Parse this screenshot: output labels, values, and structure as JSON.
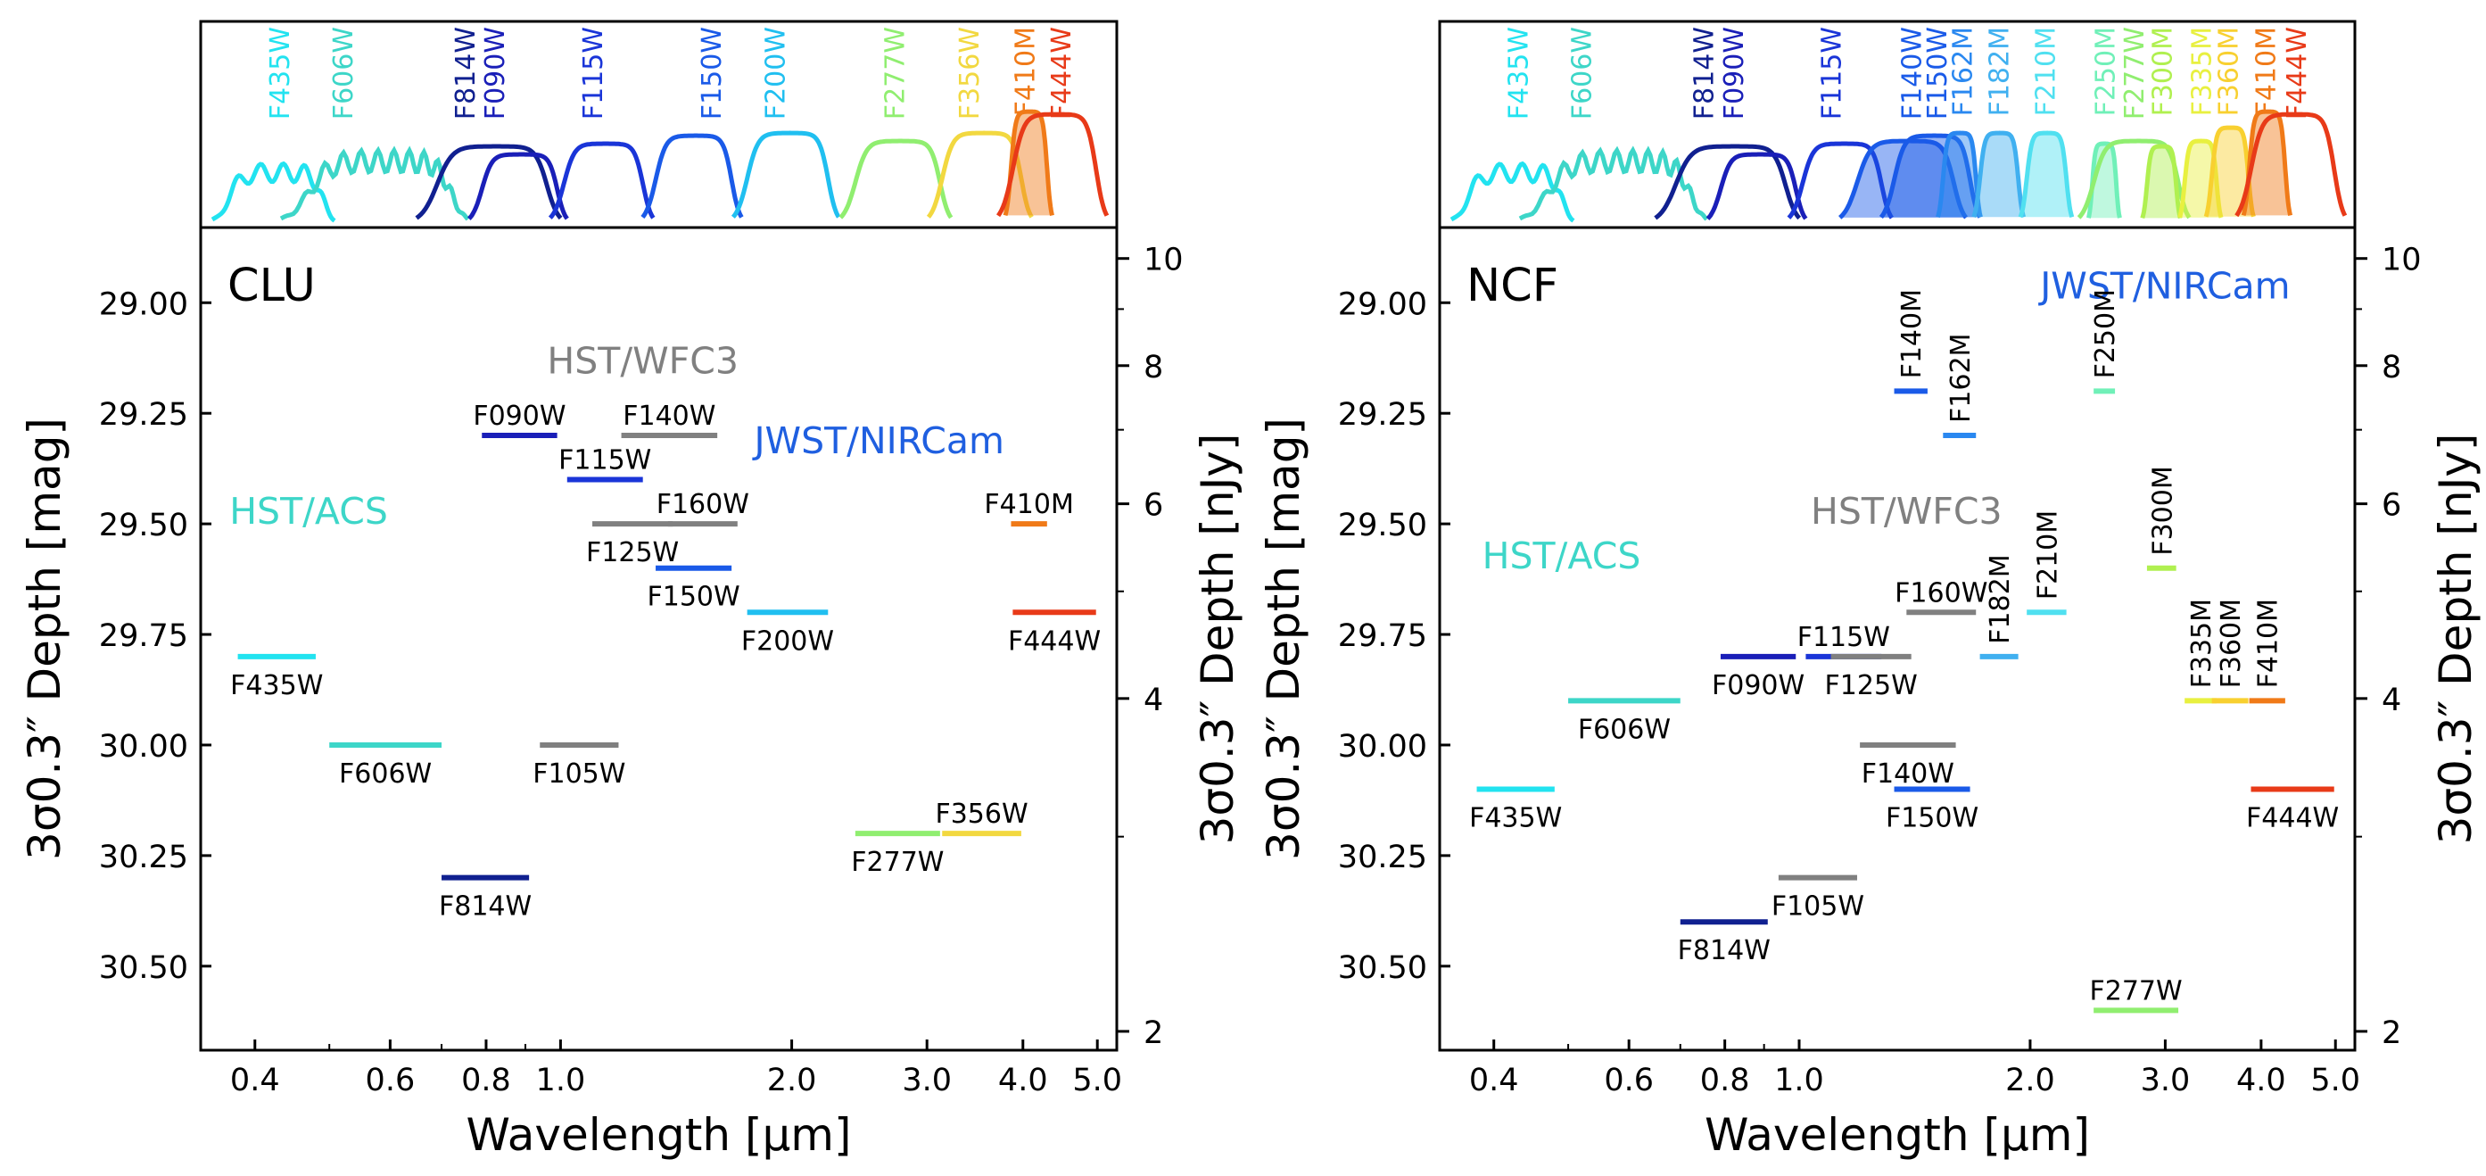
{
  "chart_data": [
    {
      "panel": "CLU",
      "type": "scatter",
      "panel_label": "CLU",
      "xlabel": "Wavelength [µm]",
      "ylabel_left": "3σ0.3″ Depth [mag]",
      "ylabel_right": "3σ0.3″ Depth [nJy]",
      "x_scale": "log",
      "xlim": [
        0.34,
        5.3
      ],
      "ylim": [
        30.69,
        28.83
      ],
      "xticks": [
        "0.4",
        "0.6",
        "0.8",
        "1.0",
        "2.0",
        "3.0",
        "4.0",
        "5.0"
      ],
      "yticks_left": [
        "29.00",
        "29.25",
        "29.50",
        "29.75",
        "30.00",
        "30.25",
        "30.50"
      ],
      "yticks_right": [
        "10",
        "8",
        "6",
        "4",
        "2"
      ],
      "instrument_labels": [
        {
          "text": "HST/ACS",
          "color": "#3dd6c8",
          "x": 0.47,
          "mag": 29.47
        },
        {
          "text": "HST/WFC3",
          "color": "#808080",
          "x": 1.28,
          "mag": 29.13
        },
        {
          "text": "JWST/NIRCam",
          "color": "#1f5fe0",
          "x": 2.6,
          "mag": 29.31
        }
      ],
      "filters": [
        {
          "name": "F435W",
          "xmin": 0.38,
          "xmax": 0.48,
          "mag": 29.8,
          "color": "#22e3f0",
          "label_pos": "below",
          "label": "F435W"
        },
        {
          "name": "F606W",
          "xmin": 0.5,
          "xmax": 0.7,
          "mag": 30.0,
          "color": "#3dd6c8",
          "label_pos": "below",
          "label": "F606W"
        },
        {
          "name": "F814W",
          "xmin": 0.7,
          "xmax": 0.91,
          "mag": 30.3,
          "color": "#102090",
          "label_pos": "below",
          "label": "F814W"
        },
        {
          "name": "F090W",
          "xmin": 0.79,
          "xmax": 0.99,
          "mag": 29.3,
          "color": "#1a1fb8",
          "label_pos": "above",
          "label": "F090W"
        },
        {
          "name": "F105W",
          "xmin": 0.94,
          "xmax": 1.19,
          "mag": 30.0,
          "color": "#808080",
          "label_pos": "below",
          "label": "F105W"
        },
        {
          "name": "F115W",
          "xmin": 1.02,
          "xmax": 1.28,
          "mag": 29.4,
          "color": "#1a35d8",
          "label_pos": "above",
          "label": "F115W"
        },
        {
          "name": "F125W",
          "xmin": 1.1,
          "xmax": 1.4,
          "mag": 29.5,
          "color": "#808080",
          "label_pos": "below",
          "label": "F125W"
        },
        {
          "name": "F140W",
          "xmin": 1.2,
          "xmax": 1.6,
          "mag": 29.3,
          "color": "#808080",
          "label_pos": "above",
          "label": "F140W"
        },
        {
          "name": "F160W",
          "xmin": 1.38,
          "xmax": 1.7,
          "mag": 29.5,
          "color": "#808080",
          "label_pos": "above",
          "label": "F160W"
        },
        {
          "name": "F150W",
          "xmin": 1.33,
          "xmax": 1.67,
          "mag": 29.6,
          "color": "#1a5ae8",
          "label_pos": "below",
          "label": "F150W"
        },
        {
          "name": "F200W",
          "xmin": 1.75,
          "xmax": 2.23,
          "mag": 29.7,
          "color": "#20bff0",
          "label_pos": "below",
          "label": "F200W"
        },
        {
          "name": "F277W",
          "xmin": 2.42,
          "xmax": 3.12,
          "mag": 30.2,
          "color": "#90ee70",
          "label_pos": "below",
          "label": "F277W"
        },
        {
          "name": "F356W",
          "xmin": 3.14,
          "xmax": 3.98,
          "mag": 30.2,
          "color": "#f2d840",
          "label_pos": "above",
          "label": "F356W"
        },
        {
          "name": "F410M",
          "xmin": 3.86,
          "xmax": 4.3,
          "mag": 29.5,
          "color": "#f07a18",
          "label_pos": "above",
          "label": "F410M"
        },
        {
          "name": "F444W",
          "xmin": 3.88,
          "xmax": 4.98,
          "mag": 29.7,
          "color": "#e83a18",
          "label_pos": "below",
          "label": "F444W"
        }
      ],
      "throughput_labels": [
        {
          "name": "F435W",
          "color": "#22e3f0",
          "x": 0.43
        },
        {
          "name": "F606W",
          "color": "#3dd6c8",
          "x": 0.52
        },
        {
          "name": "F814W",
          "color": "#102090",
          "x": 0.75
        },
        {
          "name": "F090W",
          "color": "#1a1fb8",
          "x": 0.82
        },
        {
          "name": "F115W",
          "color": "#1a35d8",
          "x": 1.1
        },
        {
          "name": "F150W",
          "color": "#1a5ae8",
          "x": 1.57
        },
        {
          "name": "F200W",
          "color": "#20bff0",
          "x": 1.9
        },
        {
          "name": "F277W",
          "color": "#90ee70",
          "x": 2.72
        },
        {
          "name": "F356W",
          "color": "#f2d840",
          "x": 3.4
        },
        {
          "name": "F410M",
          "color": "#f07a18",
          "x": 4.02
        },
        {
          "name": "F444W",
          "color": "#e83a18",
          "x": 4.48
        }
      ]
    },
    {
      "panel": "NCF",
      "type": "scatter",
      "panel_label": "NCF",
      "xlabel": "Wavelength [µm]",
      "ylabel_left": "3σ0.3″ Depth [mag]",
      "ylabel_right": "3σ0.3″ Depth [nJy]",
      "x_scale": "log",
      "xlim": [
        0.34,
        5.3
      ],
      "ylim": [
        30.69,
        28.83
      ],
      "xticks": [
        "0.4",
        "0.6",
        "0.8",
        "1.0",
        "2.0",
        "3.0",
        "4.0",
        "5.0"
      ],
      "yticks_left": [
        "29.00",
        "29.25",
        "29.50",
        "29.75",
        "30.00",
        "30.25",
        "30.50"
      ],
      "yticks_right": [
        "10",
        "8",
        "6",
        "4",
        "2"
      ],
      "instrument_labels": [
        {
          "text": "HST/ACS",
          "color": "#3dd6c8",
          "x": 0.49,
          "mag": 29.57
        },
        {
          "text": "HST/WFC3",
          "color": "#808080",
          "x": 1.38,
          "mag": 29.47
        },
        {
          "text": "JWST/NIRCam",
          "color": "#1f5fe0",
          "x": 3.0,
          "mag": 28.96
        }
      ],
      "filters": [
        {
          "name": "F435W",
          "xmin": 0.38,
          "xmax": 0.48,
          "mag": 30.1,
          "color": "#22e3f0",
          "label_pos": "below",
          "label": "F435W"
        },
        {
          "name": "F606W",
          "xmin": 0.5,
          "xmax": 0.7,
          "mag": 29.9,
          "color": "#3dd6c8",
          "label_pos": "below",
          "label": "F606W"
        },
        {
          "name": "F814W",
          "xmin": 0.7,
          "xmax": 0.91,
          "mag": 30.4,
          "color": "#102090",
          "label_pos": "below",
          "label": "F814W"
        },
        {
          "name": "F090W",
          "xmin": 0.79,
          "xmax": 0.99,
          "mag": 29.8,
          "color": "#1a1fb8",
          "label_pos": "below",
          "label": "F090W"
        },
        {
          "name": "F105W",
          "xmin": 0.94,
          "xmax": 1.19,
          "mag": 30.3,
          "color": "#808080",
          "label_pos": "below",
          "label": "F105W"
        },
        {
          "name": "F115W",
          "xmin": 1.02,
          "xmax": 1.28,
          "mag": 29.8,
          "color": "#1a35d8",
          "label_pos": "above",
          "label": "F115W"
        },
        {
          "name": "F125W",
          "xmin": 1.1,
          "xmax": 1.4,
          "mag": 29.8,
          "color": "#808080",
          "label_pos": "below",
          "label": "F125W"
        },
        {
          "name": "F140W",
          "xmin": 1.2,
          "xmax": 1.6,
          "mag": 30.0,
          "color": "#808080",
          "label_pos": "below",
          "label": "F140W"
        },
        {
          "name": "F150W",
          "xmin": 1.33,
          "xmax": 1.67,
          "mag": 30.1,
          "color": "#1a5ae8",
          "label_pos": "below",
          "label": "F150W"
        },
        {
          "name": "F160W",
          "xmin": 1.38,
          "xmax": 1.7,
          "mag": 29.7,
          "color": "#808080",
          "label_pos": "above",
          "label": "F160W"
        },
        {
          "name": "F140M",
          "xmin": 1.33,
          "xmax": 1.47,
          "mag": 29.2,
          "color": "#1a5ae8",
          "label_pos": "vertical",
          "label": "F140M"
        },
        {
          "name": "F162M",
          "xmin": 1.54,
          "xmax": 1.7,
          "mag": 29.3,
          "color": "#2a88f0",
          "label_pos": "vertical",
          "label": "F162M"
        },
        {
          "name": "F182M",
          "xmin": 1.72,
          "xmax": 1.93,
          "mag": 29.8,
          "color": "#40b0f0",
          "label_pos": "vertical",
          "label": "F182M"
        },
        {
          "name": "F210M",
          "xmin": 1.98,
          "xmax": 2.23,
          "mag": 29.7,
          "color": "#50e0f0",
          "label_pos": "vertical",
          "label": "F210M"
        },
        {
          "name": "F250M",
          "xmin": 2.42,
          "xmax": 2.58,
          "mag": 29.2,
          "color": "#70f0b8",
          "label_pos": "vertical",
          "label": "F250M"
        },
        {
          "name": "F277W",
          "xmin": 2.42,
          "xmax": 3.12,
          "mag": 30.6,
          "color": "#90ee70",
          "label_pos": "above",
          "label": "F277W"
        },
        {
          "name": "F300M",
          "xmin": 2.84,
          "xmax": 3.1,
          "mag": 29.6,
          "color": "#b0f050",
          "label_pos": "vertical",
          "label": "F300M"
        },
        {
          "name": "F335M",
          "xmin": 3.18,
          "xmax": 3.5,
          "mag": 29.9,
          "color": "#e8f040",
          "label_pos": "vertical",
          "label": "F335M"
        },
        {
          "name": "F360M",
          "xmin": 3.45,
          "xmax": 3.85,
          "mag": 29.9,
          "color": "#f8d030",
          "label_pos": "vertical",
          "label": "F360M"
        },
        {
          "name": "F410M",
          "xmin": 3.86,
          "xmax": 4.3,
          "mag": 29.9,
          "color": "#f07a18",
          "label_pos": "vertical",
          "label": "F410M"
        },
        {
          "name": "F444W",
          "xmin": 3.88,
          "xmax": 4.98,
          "mag": 30.1,
          "color": "#e83a18",
          "label_pos": "below",
          "label": "F444W"
        }
      ],
      "throughput_labels": [
        {
          "name": "F435W",
          "color": "#22e3f0",
          "x": 0.43
        },
        {
          "name": "F606W",
          "color": "#3dd6c8",
          "x": 0.52
        },
        {
          "name": "F814W",
          "color": "#102090",
          "x": 0.75
        },
        {
          "name": "F090W",
          "color": "#1a1fb8",
          "x": 0.82
        },
        {
          "name": "F115W",
          "color": "#1a35d8",
          "x": 1.1
        },
        {
          "name": "F140W",
          "color": "#1a5ae8",
          "x": 1.4
        },
        {
          "name": "F150W",
          "color": "#1a5ae8",
          "x": 1.51
        },
        {
          "name": "F162M",
          "color": "#2a88f0",
          "x": 1.63
        },
        {
          "name": "F182M",
          "color": "#40b0f0",
          "x": 1.82
        },
        {
          "name": "F210M",
          "color": "#50e0f0",
          "x": 2.09
        },
        {
          "name": "F250M",
          "color": "#70f0b8",
          "x": 2.5
        },
        {
          "name": "F277W",
          "color": "#90ee70",
          "x": 2.73
        },
        {
          "name": "F300M",
          "color": "#b0f050",
          "x": 2.97
        },
        {
          "name": "F335M",
          "color": "#e8f040",
          "x": 3.34
        },
        {
          "name": "F360M",
          "color": "#f8d030",
          "x": 3.62
        },
        {
          "name": "F410M",
          "color": "#f07a18",
          "x": 4.05
        },
        {
          "name": "F444W",
          "color": "#e83a18",
          "x": 4.44
        }
      ]
    }
  ]
}
